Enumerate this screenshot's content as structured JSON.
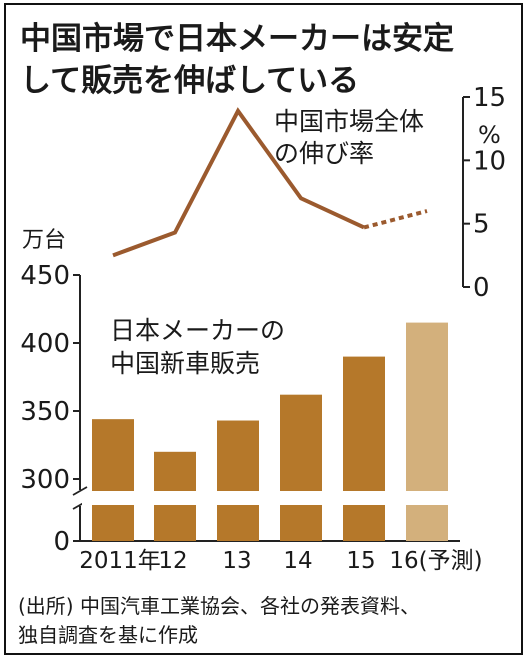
{
  "title": {
    "line1": "中国市場で日本メーカーは安定",
    "line2": "して販売を伸ばしている"
  },
  "source": {
    "line1": "(出所) 中国汽車工業協会、各社の発表資料、",
    "line2": "独自調査を基に作成"
  },
  "chart_data": [
    {
      "type": "bar",
      "label_line1": "日本メーカーの",
      "label_line2": "中国新車販売",
      "unit": "万台",
      "categories": [
        "2011年",
        "12",
        "13",
        "14",
        "15",
        "16(予測)"
      ],
      "values": [
        344,
        320,
        343,
        362,
        390,
        415
      ],
      "forecast_index": 5,
      "ylim": [
        300,
        450
      ],
      "yticks": [
        "450",
        "400",
        "350",
        "300"
      ],
      "axis_break": true,
      "zero_label": "0",
      "colors": {
        "bar": "#b5782a",
        "forecast": "#d3b07c"
      }
    },
    {
      "type": "line",
      "label_line1": "中国市場全体",
      "label_line2": "の伸び率",
      "unit": "%",
      "categories": [
        "2011年",
        "12",
        "13",
        "14",
        "15",
        "16(予測)"
      ],
      "values": [
        2.5,
        4.3,
        13.9,
        7.0,
        4.7,
        6.0
      ],
      "forecast_from_index": 4,
      "ylim": [
        0,
        15
      ],
      "yticks": [
        "15",
        "10",
        "5",
        "0"
      ],
      "colors": {
        "line": "#9b5a2e"
      }
    }
  ]
}
